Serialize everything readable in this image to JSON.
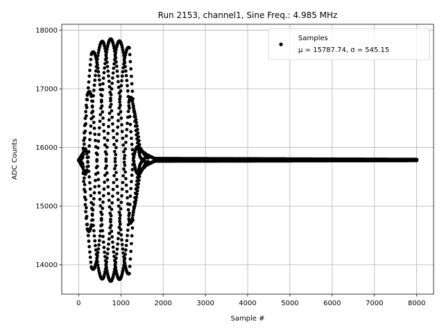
{
  "chart_data": {
    "type": "scatter",
    "title": "Run 2153, channel1, Sine Freq.: 4.985 MHz",
    "xlabel": "Sample #",
    "ylabel": "ADC Counts",
    "xlim": [
      -400,
      8400
    ],
    "ylim": [
      13500,
      18100
    ],
    "xticks": [
      0,
      1000,
      2000,
      3000,
      4000,
      5000,
      6000,
      7000,
      8000
    ],
    "yticks": [
      14000,
      15000,
      16000,
      17000,
      18000
    ],
    "grid": true,
    "legend_position": "top-right",
    "marker_color": "#000000",
    "series": [
      {
        "name": "Samples",
        "stats_label": "μ = 15787.74, σ = 545.15",
        "mean": 15787.74,
        "sigma": 545.15,
        "envelope": [
          {
            "x": 0,
            "min": 15780,
            "max": 15790
          },
          {
            "x": 100,
            "min": 15650,
            "max": 15900
          },
          {
            "x": 200,
            "min": 14500,
            "max": 17000
          },
          {
            "x": 300,
            "min": 13950,
            "max": 17600
          },
          {
            "x": 600,
            "min": 13720,
            "max": 17850
          },
          {
            "x": 900,
            "min": 13720,
            "max": 17850
          },
          {
            "x": 1200,
            "min": 13850,
            "max": 17700
          },
          {
            "x": 1300,
            "min": 14800,
            "max": 16800
          },
          {
            "x": 1450,
            "min": 15550,
            "max": 16000
          },
          {
            "x": 1600,
            "min": 15700,
            "max": 15880
          },
          {
            "x": 1800,
            "min": 15770,
            "max": 15810
          },
          {
            "x": 8000,
            "min": 15780,
            "max": 15795
          }
        ],
        "baseline_x_range": [
          1600,
          8000
        ],
        "baseline_y": 15788
      }
    ]
  }
}
